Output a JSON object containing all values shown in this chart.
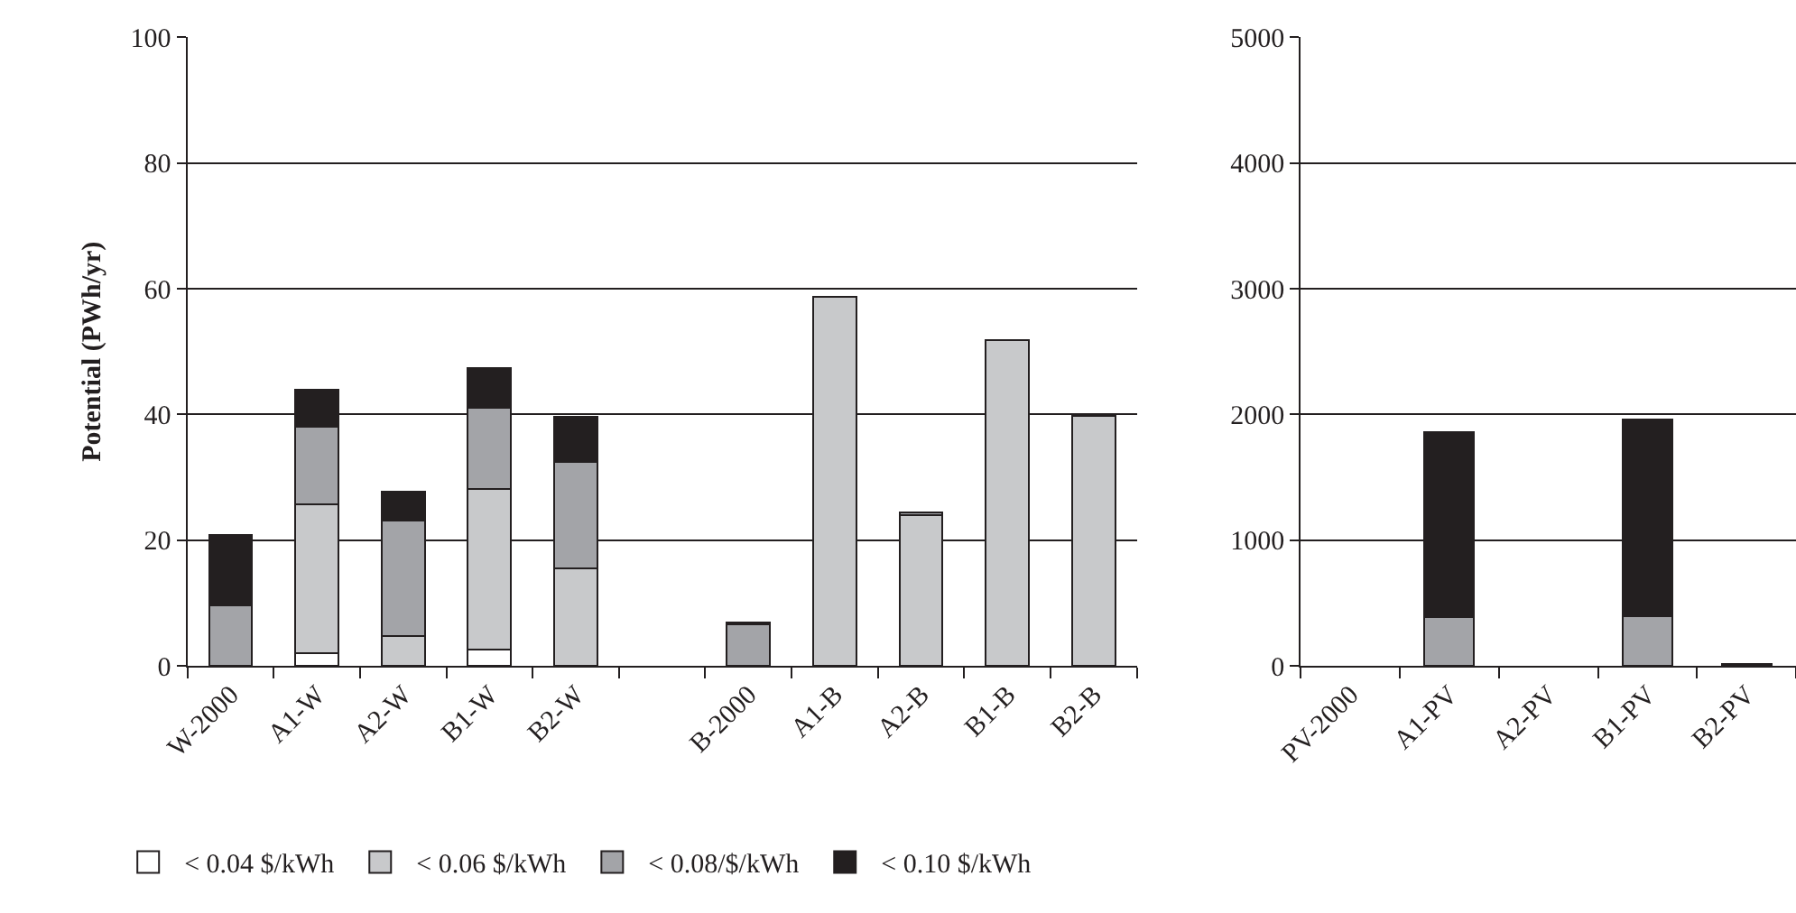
{
  "chart_data": [
    {
      "type": "bar",
      "stacked": true,
      "ylabel": "Potential (PWh/yr)",
      "categories": [
        "W-2000",
        "A1-W",
        "A2-W",
        "B1-W",
        "B2-W",
        null,
        "B-2000",
        "A1-B",
        "A2-B",
        "B1-B",
        "B2-B"
      ],
      "ylim": [
        0,
        100
      ],
      "yticks": [
        0,
        20,
        40,
        60,
        80,
        100
      ],
      "grid": "y",
      "legend": "bottom left",
      "series": [
        {
          "name": "< 0.04 $/kWh",
          "color": "#ffffff",
          "values": [
            null,
            2.0,
            null,
            2.7,
            null,
            null,
            null,
            null,
            null,
            null,
            null
          ]
        },
        {
          "name": "< 0.06 $/kWh",
          "color": "#c8c9cb",
          "values": [
            null,
            23.7,
            4.8,
            25.5,
            15.5,
            null,
            null,
            58.7,
            24.0,
            51.8,
            39.8
          ]
        },
        {
          "name": "< 0.08/$/kWh",
          "color": "#a3a4a8",
          "values": [
            9.6,
            12.3,
            18.3,
            12.8,
            16.9,
            null,
            6.6,
            null,
            0.5,
            null,
            0.2
          ]
        },
        {
          "name": "< 0.10 $/kWh",
          "color": "#231f20",
          "values": [
            11.3,
            6.0,
            4.6,
            6.4,
            7.2,
            null,
            0.3,
            null,
            null,
            null,
            null
          ]
        }
      ]
    },
    {
      "type": "bar",
      "stacked": true,
      "categories": [
        "PV-2000",
        "A1-PV",
        "A2-PV",
        "B1-PV",
        "B2-PV"
      ],
      "ylim": [
        0,
        5000
      ],
      "yticks": [
        0,
        1000,
        2000,
        3000,
        4000,
        5000
      ],
      "grid": "y",
      "series": [
        {
          "color": "#a3a4a8",
          "values": [
            null,
            390,
            null,
            400,
            null
          ]
        },
        {
          "color": "#231f20",
          "values": [
            null,
            1470,
            null,
            1560,
            20
          ]
        }
      ]
    }
  ]
}
